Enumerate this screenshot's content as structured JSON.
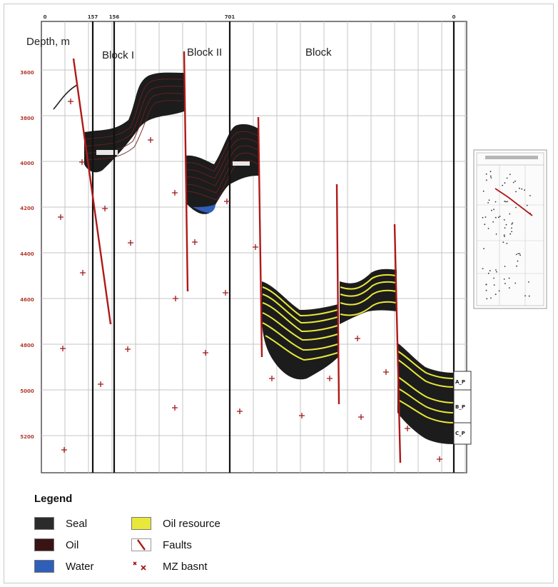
{
  "labels": {
    "depth": "Depth, m",
    "block1": "Block I",
    "block2": "Block II",
    "block3": "Block"
  },
  "well_labels": [
    "0",
    "157",
    "156",
    "701",
    "0"
  ],
  "depth_ticks": [
    "3600",
    "3800",
    "4000",
    "4200",
    "4400",
    "4600",
    "4800",
    "5000",
    "5200"
  ],
  "formations": [
    "A_P",
    "B_P",
    "C_P"
  ],
  "box_labels": [
    "",
    ""
  ],
  "inset": {
    "title": "",
    "wells": [
      "",
      "",
      ""
    ]
  },
  "legend": {
    "title": "Legend",
    "seal": "Seal",
    "oil": "Oil",
    "water": "Water",
    "oil_resource": "Oil resource",
    "faults": "Faults",
    "mz_basnt": "MZ basnt"
  },
  "colors": {
    "seal": "#2b2b2b",
    "oil": "#3a1414",
    "water": "#2f5fb8",
    "oil_resource": "#e8e83a",
    "fault": "#b01818",
    "marker": "#a01818"
  }
}
